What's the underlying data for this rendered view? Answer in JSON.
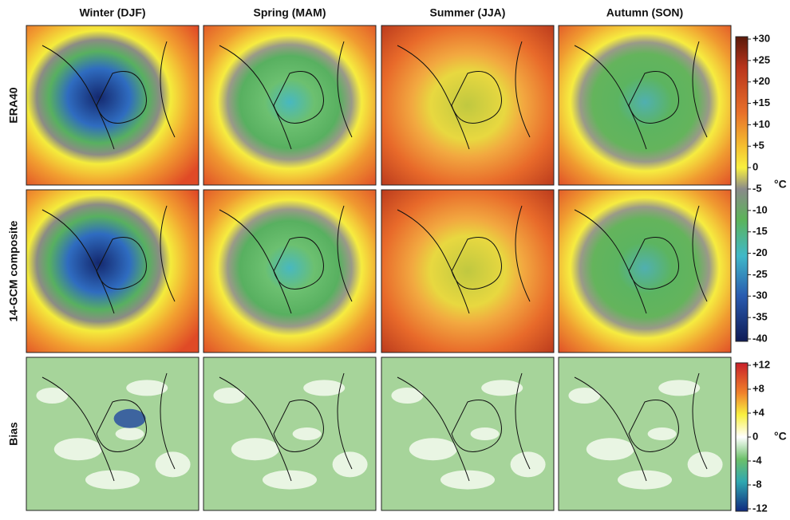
{
  "columns": [
    "Winter (DJF)",
    "Spring (MAM)",
    "Summer (JJA)",
    "Autumn (SON)"
  ],
  "rows": [
    "ERA40",
    "14-GCM composite",
    "Bias"
  ],
  "colorbars": [
    {
      "unit": "°C",
      "ticks": [
        {
          "value": 30,
          "label": "+30"
        },
        {
          "value": 25,
          "label": "+25"
        },
        {
          "value": 20,
          "label": "+20"
        },
        {
          "value": 15,
          "label": "+15"
        },
        {
          "value": 10,
          "label": "+10"
        },
        {
          "value": 5,
          "label": "+5"
        },
        0,
        -5,
        -10,
        -15,
        -20,
        -25,
        -30,
        -35,
        -40
      ]
    },
    {
      "unit": "°C",
      "ticks": [
        {
          "value": 12,
          "label": "+12"
        },
        {
          "value": 8,
          "label": "+8"
        },
        {
          "value": 4,
          "label": "+4"
        },
        0,
        -4,
        -8,
        -12
      ]
    }
  ]
}
